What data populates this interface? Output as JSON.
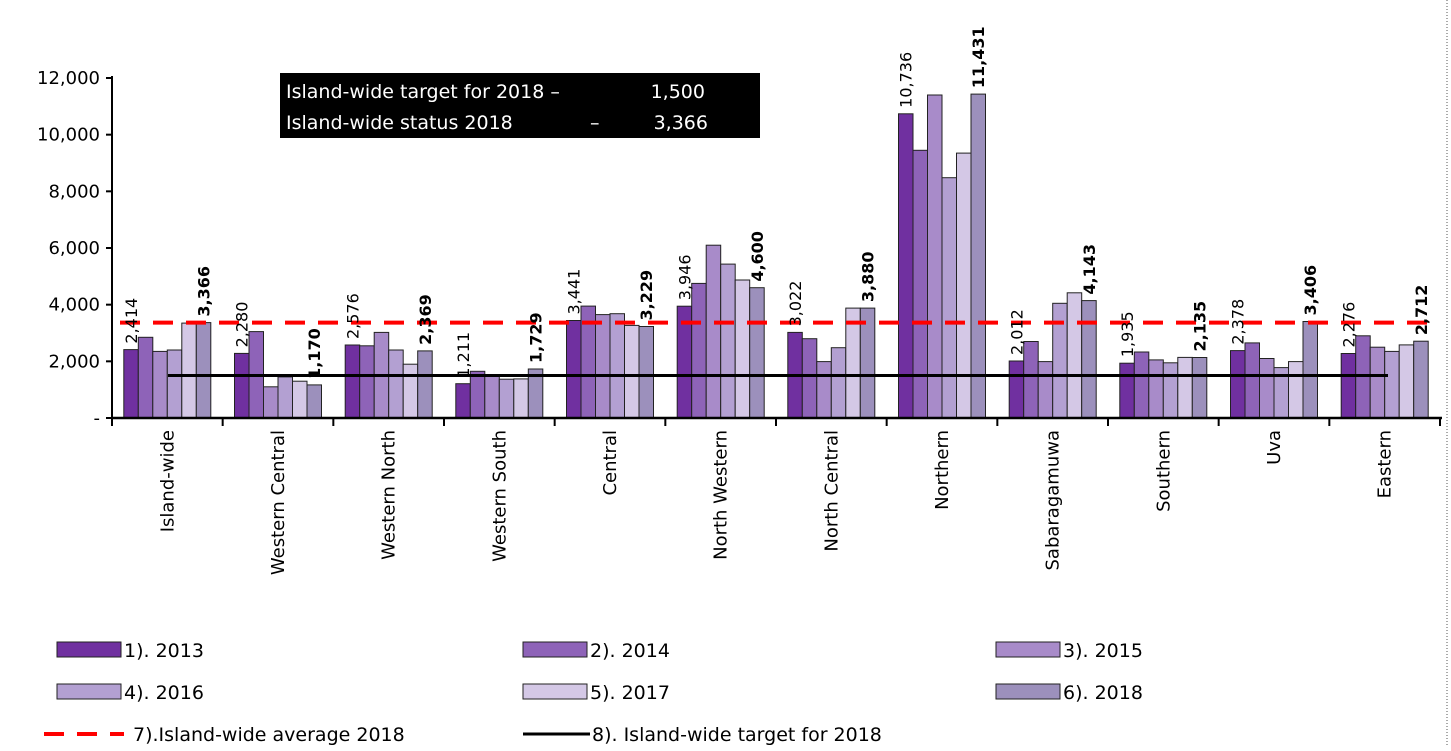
{
  "chart_data": {
    "type": "bar",
    "categories": [
      "Island-wide",
      "Western Central",
      "Western  North",
      "Western  South",
      "Central",
      "North Western",
      "North Central",
      "Northern",
      "Sabaragamuwa",
      "Southern",
      "Uva",
      "Eastern"
    ],
    "series": [
      {
        "name": "1). 2013",
        "color": "#7030A0",
        "values": [
          2414,
          2280,
          2576,
          1211,
          3441,
          3946,
          3022,
          10736,
          2012,
          1935,
          2378,
          2276
        ]
      },
      {
        "name": "2). 2014",
        "color": "#8E63B8",
        "values": [
          2850,
          3050,
          2550,
          1650,
          3950,
          4750,
          2800,
          9450,
          2700,
          2330,
          2650,
          2900
        ]
      },
      {
        "name": "3). 2015",
        "color": "#A88BC9",
        "values": [
          2350,
          1100,
          3020,
          1480,
          3650,
          6100,
          1990,
          11400,
          1990,
          2050,
          2100,
          2500
        ]
      },
      {
        "name": "4). 2016",
        "color": "#B3A0D2",
        "values": [
          2400,
          1450,
          2400,
          1370,
          3680,
          5430,
          2480,
          8480,
          4050,
          1950,
          1780,
          2350
        ]
      },
      {
        "name": "5). 2017",
        "color": "#D4C8E6",
        "values": [
          3350,
          1300,
          1900,
          1380,
          3270,
          4870,
          3880,
          9350,
          4420,
          2140,
          1990,
          2580
        ]
      },
      {
        "name": "6). 2018",
        "color": "#9C90BC",
        "values": [
          3366,
          1170,
          2369,
          1729,
          3229,
          4600,
          3880,
          11431,
          4143,
          2135,
          3406,
          2712
        ]
      }
    ],
    "data_labels_2013": [
      "2,414",
      "2,280",
      "2,576",
      "1,211",
      "3,441",
      "3,946",
      "3,022",
      "10,736",
      "2,012",
      "1,935",
      "2,378",
      "2,276"
    ],
    "data_labels_2018": [
      "3,366",
      "1,170",
      "2,369",
      "1,729",
      "3,229",
      "4,600",
      "3,880",
      "11,431",
      "4,143",
      "2,135",
      "3,406",
      "2,712"
    ],
    "average_line": {
      "label": "7).Island-wide average 2018",
      "value": 3366,
      "color": "#FF0000"
    },
    "target_line": {
      "label": "8). Island-wide target for 2018",
      "value": 1500,
      "color": "#000000"
    },
    "y_ticks": [
      {
        "value": 0,
        "label": "-"
      },
      {
        "value": 2000,
        "label": "2,000"
      },
      {
        "value": 4000,
        "label": "4,000"
      },
      {
        "value": 6000,
        "label": "6,000"
      },
      {
        "value": 8000,
        "label": "8,000"
      },
      {
        "value": 10000,
        "label": "10,000"
      },
      {
        "value": 12000,
        "label": "12,000"
      }
    ],
    "ylim": [
      0,
      12000
    ],
    "title": "",
    "xlabel": "",
    "ylabel": "",
    "grid": false,
    "legend_position": "bottom",
    "info_box": {
      "line1_label": "Island-wide target for 2018 –",
      "line1_value": "1,500",
      "line2_label": "Island-wide status 2018",
      "line2_dash": "–",
      "line2_value": "3,366"
    }
  }
}
